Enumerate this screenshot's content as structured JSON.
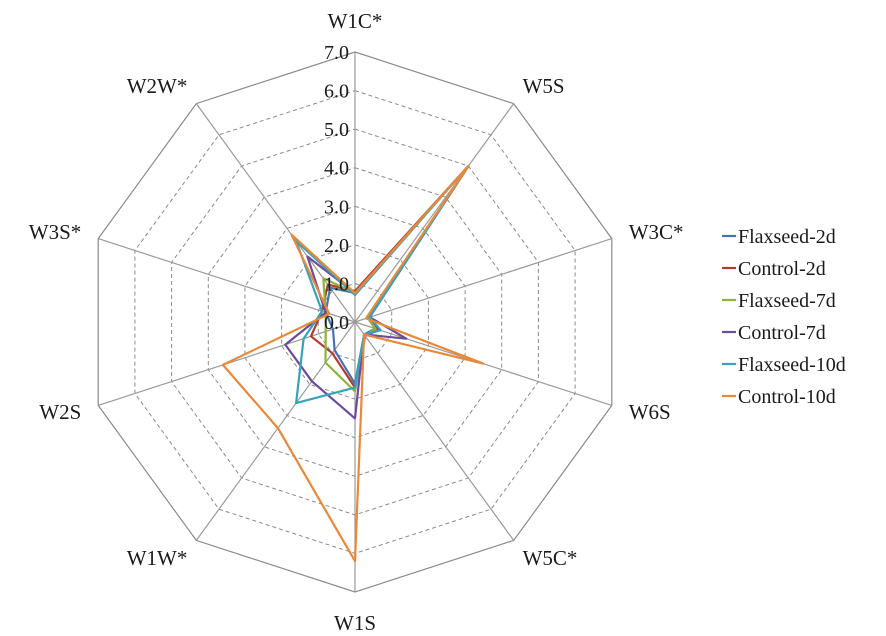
{
  "chart_data": {
    "type": "radar",
    "axes": [
      "W1C*",
      "W5S",
      "W3C*",
      "W6S",
      "W5C*",
      "W1S",
      "W1W*",
      "W2S",
      "W3S*",
      "W2W*"
    ],
    "axis_order_note": "",
    "ticks": [
      "0.0",
      "1.0",
      "2.0",
      "3.0",
      "4.0",
      "5.0",
      "6.0",
      "7.0"
    ],
    "rlim": [
      0,
      7
    ],
    "grid": true,
    "legend_position": "right",
    "series": [
      {
        "name": "Flaxseed-2d",
        "color": "#4a72b0",
        "values": [
          0.75,
          5.0,
          0.35,
          0.55,
          0.4,
          1.6,
          0.9,
          0.6,
          0.8,
          1.1
        ]
      },
      {
        "name": "Control-2d",
        "color": "#b23a2f",
        "values": [
          0.8,
          5.0,
          0.4,
          0.65,
          0.45,
          1.7,
          1.0,
          1.2,
          0.9,
          1.2
        ]
      },
      {
        "name": "Flaxseed-7d",
        "color": "#8db33b",
        "values": [
          0.75,
          5.0,
          0.35,
          0.55,
          0.45,
          1.8,
          1.3,
          0.8,
          0.8,
          1.4
        ]
      },
      {
        "name": "Control-7d",
        "color": "#6e4c9c",
        "values": [
          0.75,
          5.0,
          0.4,
          1.4,
          0.4,
          2.5,
          1.9,
          1.9,
          0.8,
          2.1
        ]
      },
      {
        "name": "Flaxseed-10d",
        "color": "#37a3b8",
        "values": [
          0.7,
          5.0,
          0.4,
          0.7,
          0.4,
          1.7,
          2.6,
          1.4,
          0.9,
          2.6
        ]
      },
      {
        "name": "Control-10d",
        "color": "#e8893a",
        "values": [
          0.75,
          5.0,
          0.3,
          3.5,
          0.4,
          6.2,
          3.4,
          3.6,
          0.7,
          2.8
        ]
      }
    ]
  }
}
